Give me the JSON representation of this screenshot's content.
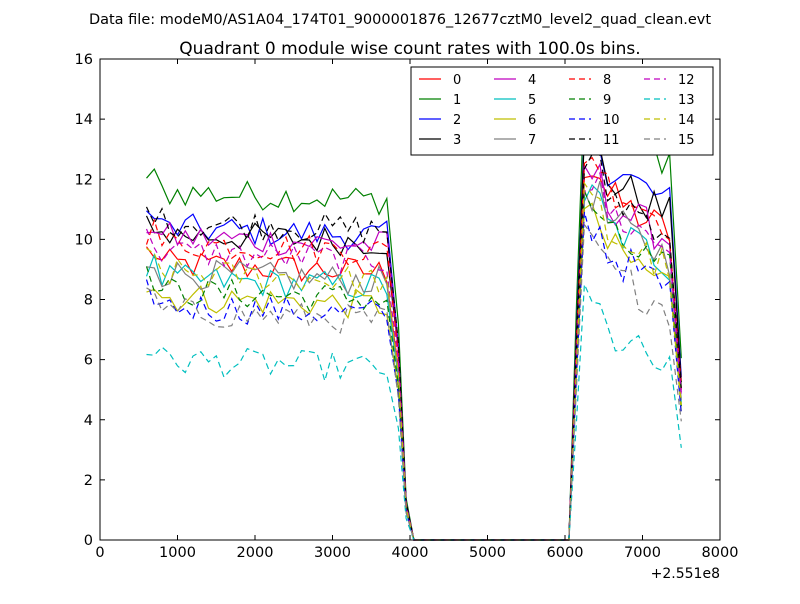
{
  "suptitle": "Data file: modeM0/AS1A04_174T01_9000001876_12677cztM0_level2_quad_clean.evt",
  "chart_data": {
    "type": "line",
    "title": "Quadrant 0 module wise count rates with 100.0s bins.",
    "xlabel": "",
    "ylabel": "",
    "x_offset_label": "+2.551e8",
    "xlim": [
      0,
      8000
    ],
    "ylim": [
      0,
      16
    ],
    "xticks": [
      0,
      1000,
      2000,
      3000,
      4000,
      5000,
      6000,
      7000,
      8000
    ],
    "yticks": [
      0,
      2,
      4,
      6,
      8,
      10,
      12,
      14,
      16
    ],
    "grid": false,
    "legend_position": "top-right",
    "gap_start": 3800,
    "gap_end": 6100,
    "series": [
      {
        "name": "0",
        "color": "#ff0000",
        "dash": "solid",
        "level1": 9.2,
        "level2": 11.9
      },
      {
        "name": "1",
        "color": "#008000",
        "dash": "solid",
        "level1": 11.6,
        "level2": 14.4
      },
      {
        "name": "2",
        "color": "#0000ff",
        "dash": "solid",
        "level1": 10.4,
        "level2": 12.9
      },
      {
        "name": "3",
        "color": "#000000",
        "dash": "solid",
        "level1": 10.2,
        "level2": 12.5
      },
      {
        "name": "4",
        "color": "#bf00bf",
        "dash": "solid",
        "level1": 10.1,
        "level2": 11.7
      },
      {
        "name": "5",
        "color": "#00bfbf",
        "dash": "solid",
        "level1": 8.7,
        "level2": 10.9
      },
      {
        "name": "6",
        "color": "#bfbf00",
        "dash": "solid",
        "level1": 8.1,
        "level2": 10.2
      },
      {
        "name": "7",
        "color": "#808080",
        "dash": "solid",
        "level1": 8.9,
        "level2": 11.1
      },
      {
        "name": "8",
        "color": "#ff0000",
        "dash": "dashed",
        "level1": 9.9,
        "level2": 12.3
      },
      {
        "name": "9",
        "color": "#008000",
        "dash": "dashed",
        "level1": 8.3,
        "level2": 10.6
      },
      {
        "name": "10",
        "color": "#0000ff",
        "dash": "dashed",
        "level1": 7.8,
        "level2": 10.0
      },
      {
        "name": "11",
        "color": "#000000",
        "dash": "dashed",
        "level1": 10.6,
        "level2": 12.0
      },
      {
        "name": "12",
        "color": "#bf00bf",
        "dash": "dashed",
        "level1": 9.6,
        "level2": 11.4
      },
      {
        "name": "13",
        "color": "#00bfbf",
        "dash": "dashed",
        "level1": 6.0,
        "level2": 7.3
      },
      {
        "name": "14",
        "color": "#bfbf00",
        "dash": "dashed",
        "level1": 8.9,
        "level2": 10.7
      },
      {
        "name": "15",
        "color": "#808080",
        "dash": "dashed",
        "level1": 7.6,
        "level2": 9.4
      }
    ]
  }
}
